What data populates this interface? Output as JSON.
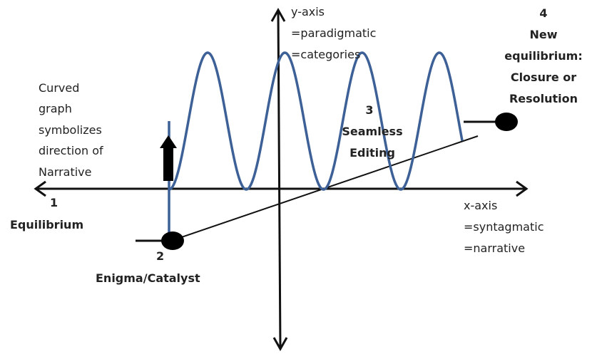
{
  "labels": {
    "y_axis": [
      "y-axis",
      "=paradigmatic",
      "=categories"
    ],
    "x_axis": [
      "x-axis",
      "=syntagmatic",
      "=narrative"
    ],
    "curve_note": [
      "Curved",
      "graph",
      "symbolizes",
      "direction of",
      "Narrative"
    ],
    "stage1": {
      "number": "1",
      "name": "Equilibrium"
    },
    "stage2": {
      "number": "2",
      "name": "Enigma/Catalyst"
    },
    "stage3": {
      "number": "3",
      "lines": [
        "Seamless",
        "Editing"
      ]
    },
    "stage4": {
      "number": "4",
      "lines": [
        "New",
        "equilibrium:",
        "Closure or",
        "Resolution"
      ]
    }
  },
  "colors": {
    "wave": "#3d6096",
    "ink": "#111111",
    "text": "#222222"
  }
}
